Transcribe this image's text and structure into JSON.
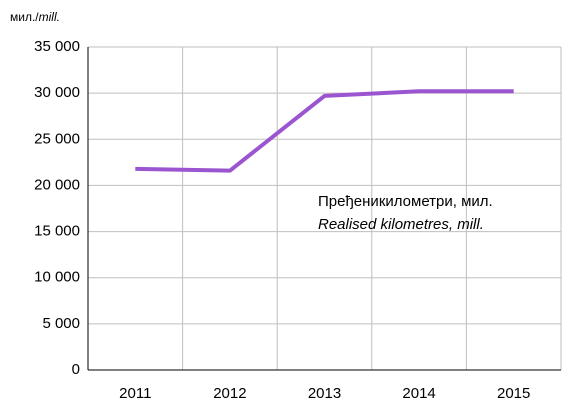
{
  "chart_data": {
    "type": "line",
    "y_unit": "мил./",
    "y_unit_en": "mill.",
    "annotation": "Пређеникилометри, мил.",
    "annotation_en": "Realised kilometres, mill.",
    "categories": [
      "2011",
      "2012",
      "2013",
      "2014",
      "2015"
    ],
    "series": [
      {
        "name": "Пређеникилометри, мил.",
        "color": "#9b55d0",
        "values": [
          21800,
          21600,
          29700,
          30200,
          30200
        ]
      }
    ],
    "ylim": [
      0,
      35000
    ],
    "yticks": [
      0,
      {
        "value": 5000,
        "label": "5 000"
      },
      {
        "value": 10000,
        "label": "10 000"
      },
      {
        "value": 15000,
        "label": "15 000"
      },
      {
        "value": 20000,
        "label": "20 000"
      },
      {
        "value": 25000,
        "label": "25 000"
      },
      {
        "value": 30000,
        "label": "30 000"
      },
      {
        "value": 35000,
        "label": "35 000"
      }
    ],
    "grid": true
  }
}
